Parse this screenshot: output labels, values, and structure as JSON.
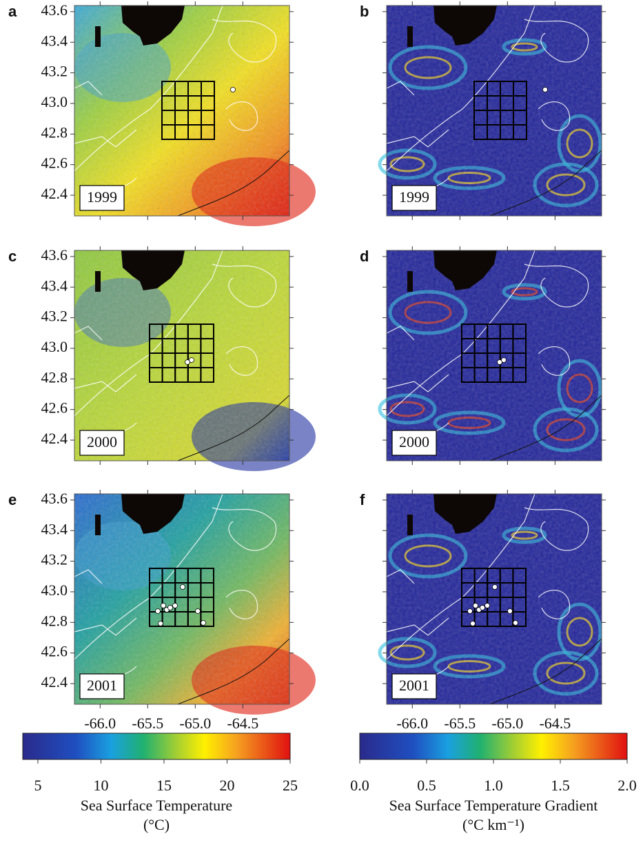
{
  "panels": [
    {
      "letter": "a",
      "year": "1999"
    },
    {
      "letter": "b",
      "year": "1999"
    },
    {
      "letter": "c",
      "year": "2000"
    },
    {
      "letter": "d",
      "year": "2000"
    },
    {
      "letter": "e",
      "year": "2001"
    },
    {
      "letter": "f",
      "year": "2001"
    }
  ],
  "map_axes": {
    "xlim": [
      -66.27,
      -64.01
    ],
    "ylim": [
      42.265,
      43.64
    ],
    "xticks": [
      {
        "value": -66,
        "label": "-66.0"
      },
      {
        "value": -65.5,
        "label": "-65.5"
      },
      {
        "value": -65,
        "label": "-65.0"
      },
      {
        "value": -64.5,
        "label": "-64.5"
      }
    ],
    "yticks": [
      {
        "value": 43.6,
        "label": "43.6"
      },
      {
        "value": 43.4,
        "label": "43.4"
      },
      {
        "value": 43.2,
        "label": "43.2"
      },
      {
        "value": 43,
        "label": "43.0"
      },
      {
        "value": 42.8,
        "label": "42.8"
      },
      {
        "value": 42.6,
        "label": "42.6"
      },
      {
        "value": 42.4,
        "label": "42.4"
      }
    ]
  },
  "colorbars": [
    {
      "lim": [
        3.8,
        25
      ],
      "ticks": [
        5,
        10,
        15,
        20,
        25
      ],
      "label": "Sea Surface Temperature",
      "unit": "(°C)"
    },
    {
      "lim": [
        0,
        2
      ],
      "ticks": [
        {
          "value": 0,
          "label": "0.0"
        },
        0.5,
        {
          "value": 1,
          "label": "1.0"
        },
        1.5,
        {
          "value": 2,
          "label": "2.0"
        }
      ],
      "label": "Sea Surface Temperature Gradient",
      "unit": "(°C km⁻¹)"
    }
  ]
}
